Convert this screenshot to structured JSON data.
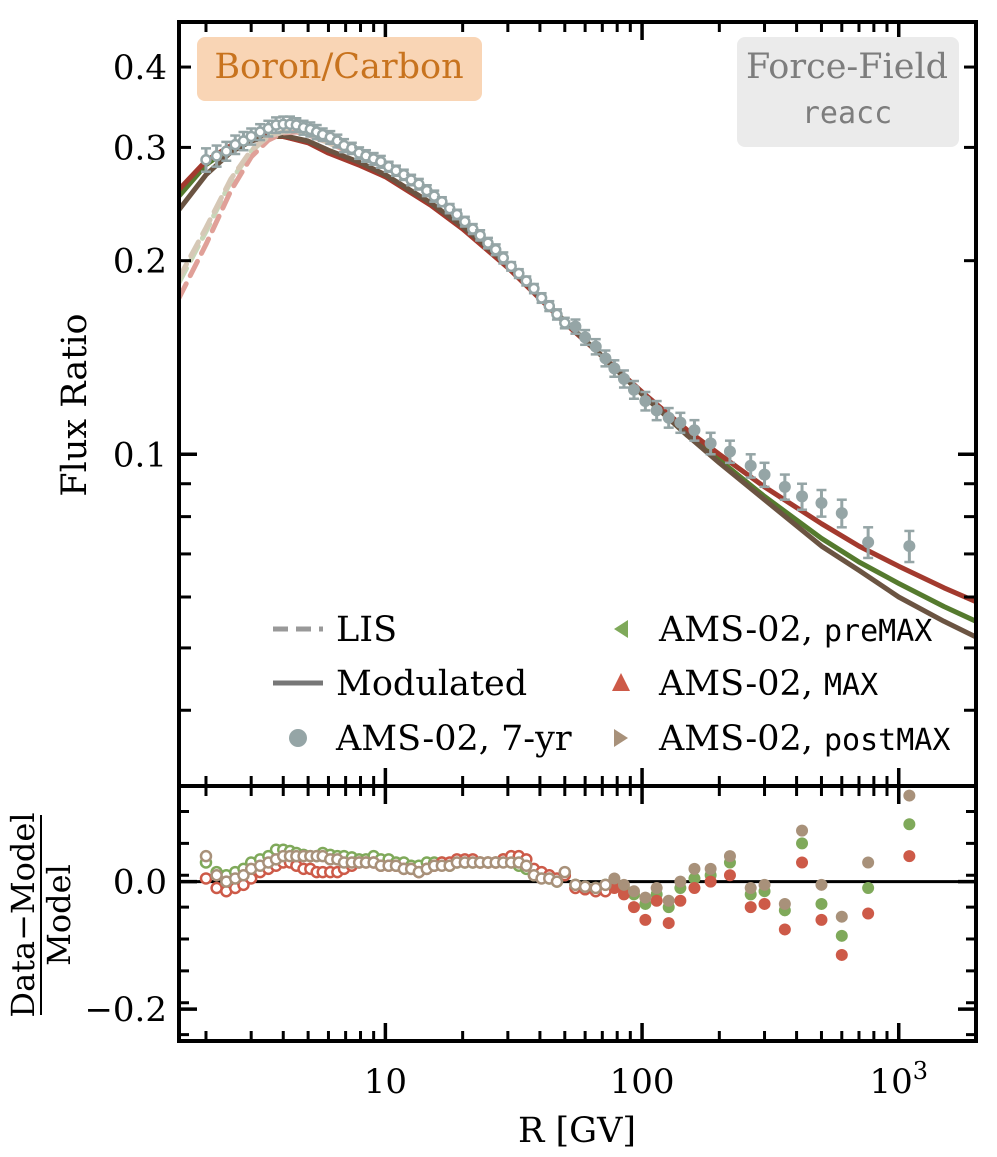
{
  "chart_data": [
    {
      "panel": "top",
      "type": "line",
      "xlabel": "",
      "ylabel": "Flux Ratio",
      "xscale": "log",
      "yscale": "log",
      "xlim": [
        1.57,
        2000
      ],
      "ylim": [
        0.0305,
        0.47
      ],
      "ytick_labels": [
        {
          "value": 0.1,
          "label": "0.1"
        },
        {
          "value": 0.2,
          "label": "0.2"
        },
        {
          "value": 0.3,
          "label": "0.3"
        },
        {
          "value": 0.4,
          "label": "0.4"
        }
      ],
      "badge_left": "Boron/Carbon",
      "badge_right": {
        "line1": "Force-Field",
        "line2": "reacc"
      },
      "legend": {
        "placement": "bottom",
        "col1": [
          {
            "key": "lis",
            "label": "LIS"
          },
          {
            "key": "modulated",
            "label": "Modulated"
          },
          {
            "key": "ams7",
            "label": "AMS-02, 7-yr"
          }
        ],
        "col2": [
          {
            "key": "pre",
            "label_main": "AMS-02, ",
            "label_code": "preMAX"
          },
          {
            "key": "max",
            "label_main": "AMS-02, ",
            "label_code": "MAX"
          },
          {
            "key": "post",
            "label_main": "AMS-02, ",
            "label_code": "postMAX"
          }
        ]
      },
      "colors": {
        "ams7": "#95a5a6",
        "pre": "#7fa95a",
        "max": "#cd5a48",
        "post": "#a8917a",
        "model_pre": "#557a2e",
        "model_max": "#a33a2e",
        "model_post": "#6b5442",
        "lis_pre": "#c8d6b8",
        "lis_max": "#e0a098",
        "lis_post": "#d6c8b6",
        "badge_left_bg": "#f9d5b5",
        "badge_left_text": "#c8731e",
        "badge_right_bg": "#ebebeb",
        "badge_right_text": "#7d7d7d"
      },
      "series": [
        {
          "kind": "modulated",
          "key": "model_pre",
          "x": [
            1.57,
            2,
            2.5,
            3,
            3.5,
            4,
            5,
            6,
            8,
            10,
            15,
            20,
            30,
            50,
            70,
            100,
            150,
            200,
            300,
            500,
            700,
            1000,
            1500,
            2000
          ],
          "y": [
            0.252,
            0.282,
            0.3,
            0.309,
            0.312,
            0.312,
            0.306,
            0.296,
            0.283,
            0.271,
            0.245,
            0.226,
            0.197,
            0.161,
            0.142,
            0.124,
            0.107,
            0.098,
            0.086,
            0.074,
            0.068,
            0.063,
            0.058,
            0.055
          ]
        },
        {
          "kind": "modulated",
          "key": "model_max",
          "x": [
            1.57,
            2,
            2.5,
            3,
            3.5,
            4,
            5,
            6,
            8,
            10,
            15,
            20,
            30,
            50,
            70,
            100,
            150,
            200,
            300,
            500,
            700,
            1000,
            1500,
            2000
          ],
          "y": [
            0.258,
            0.286,
            0.302,
            0.31,
            0.313,
            0.312,
            0.305,
            0.294,
            0.281,
            0.27,
            0.244,
            0.224,
            0.195,
            0.16,
            0.142,
            0.125,
            0.109,
            0.1,
            0.089,
            0.078,
            0.072,
            0.067,
            0.062,
            0.059
          ]
        },
        {
          "kind": "modulated",
          "key": "model_post",
          "x": [
            1.57,
            2,
            2.5,
            3,
            3.5,
            4,
            5,
            6,
            8,
            10,
            15,
            20,
            30,
            50,
            70,
            100,
            150,
            200,
            300,
            500,
            700,
            1000,
            1500,
            2000
          ],
          "y": [
            0.24,
            0.272,
            0.295,
            0.307,
            0.312,
            0.313,
            0.307,
            0.297,
            0.284,
            0.272,
            0.246,
            0.226,
            0.197,
            0.161,
            0.142,
            0.124,
            0.107,
            0.097,
            0.085,
            0.072,
            0.066,
            0.06,
            0.055,
            0.052
          ]
        },
        {
          "kind": "lis",
          "key": "lis_pre",
          "x": [
            1.57,
            2,
            2.5,
            3,
            3.5,
            4,
            4.5,
            5,
            6,
            7
          ],
          "y": [
            0.185,
            0.222,
            0.266,
            0.296,
            0.312,
            0.317,
            0.318,
            0.315,
            0.305,
            0.297
          ]
        },
        {
          "kind": "lis",
          "key": "lis_max",
          "x": [
            1.57,
            2,
            2.5,
            3,
            3.5,
            4,
            4.5,
            5,
            6,
            7
          ],
          "y": [
            0.175,
            0.212,
            0.257,
            0.29,
            0.308,
            0.316,
            0.317,
            0.314,
            0.305,
            0.297
          ]
        },
        {
          "kind": "lis",
          "key": "lis_post",
          "x": [
            1.57,
            2,
            2.5,
            3,
            3.5,
            4,
            4.5,
            5,
            6,
            7
          ],
          "y": [
            0.188,
            0.225,
            0.268,
            0.297,
            0.312,
            0.317,
            0.318,
            0.315,
            0.305,
            0.297
          ]
        }
      ],
      "points": [
        {
          "key": "ams7",
          "filled": false,
          "x": [
            2,
            2.2,
            2.4,
            2.6,
            2.8,
            3,
            3.25,
            3.5,
            3.75,
            4,
            4.25,
            4.5,
            4.8,
            5.1,
            5.4,
            5.7,
            6.1,
            6.5,
            6.9,
            7.4,
            7.9,
            8.4,
            9,
            9.6,
            10.3,
            11,
            11.8,
            12.6,
            13.5,
            14.5,
            15.5,
            16.6,
            17.8,
            19,
            20.4,
            21.9,
            23.4,
            25.1,
            26.9,
            28.8,
            30.9,
            33.1,
            35.4,
            37.9,
            40.6,
            43.5,
            46.6,
            50
          ],
          "y": [
            0.287,
            0.291,
            0.296,
            0.303,
            0.307,
            0.312,
            0.317,
            0.321,
            0.325,
            0.326,
            0.326,
            0.325,
            0.322,
            0.32,
            0.317,
            0.314,
            0.311,
            0.307,
            0.302,
            0.299,
            0.294,
            0.291,
            0.288,
            0.285,
            0.28,
            0.276,
            0.272,
            0.267,
            0.263,
            0.257,
            0.252,
            0.247,
            0.241,
            0.236,
            0.23,
            0.224,
            0.219,
            0.213,
            0.208,
            0.202,
            0.196,
            0.191,
            0.186,
            0.181,
            0.175,
            0.17,
            0.165,
            0.16
          ],
          "err": [
            0.012,
            0.011,
            0.01,
            0.01,
            0.01,
            0.009,
            0.009,
            0.009,
            0.009,
            0.009,
            0.009,
            0.008,
            0.008,
            0.008,
            0.008,
            0.007,
            0.007,
            0.007,
            0.007,
            0.006,
            0.006,
            0.006,
            0.006,
            0.006,
            0.005,
            0.005,
            0.005,
            0.005,
            0.005,
            0.005,
            0.005,
            0.004,
            0.004,
            0.004,
            0.004,
            0.004,
            0.004,
            0.004,
            0.004,
            0.004,
            0.003,
            0.003,
            0.003,
            0.003,
            0.003,
            0.003,
            0.003,
            0.003
          ]
        },
        {
          "key": "ams7",
          "filled": true,
          "x": [
            55,
            60,
            66,
            72,
            78,
            85,
            93,
            103,
            114,
            127,
            141,
            160,
            185,
            220,
            265,
            300,
            360,
            420,
            500,
            600,
            760,
            1100
          ],
          "y": [
            0.158,
            0.152,
            0.147,
            0.141,
            0.136,
            0.131,
            0.126,
            0.121,
            0.117,
            0.114,
            0.112,
            0.109,
            0.104,
            0.101,
            0.096,
            0.093,
            0.089,
            0.086,
            0.084,
            0.081,
            0.073,
            0.072
          ],
          "err": [
            0.004,
            0.004,
            0.004,
            0.004,
            0.004,
            0.004,
            0.004,
            0.004,
            0.004,
            0.004,
            0.004,
            0.004,
            0.004,
            0.004,
            0.004,
            0.004,
            0.004,
            0.004,
            0.004,
            0.004,
            0.004,
            0.004
          ]
        }
      ]
    },
    {
      "panel": "bottom",
      "type": "scatter",
      "xlabel": "R [GV]",
      "ylabel": "Data−Model / Model",
      "ylabel_numerator": "Data−Model",
      "ylabel_denominator": "Model",
      "xscale": "log",
      "xlim": [
        1.57,
        2000
      ],
      "ylim": [
        -0.25,
        0.15
      ],
      "xtick_labels": [
        {
          "value": 10,
          "label": "10"
        },
        {
          "value": 100,
          "label": "100"
        },
        {
          "value": 1000,
          "label": "10",
          "sup": "3"
        }
      ],
      "ytick_labels": [
        {
          "value": 0,
          "label": "0.0"
        },
        {
          "value": -0.2,
          "label": "−0.2"
        }
      ],
      "zero_line": true,
      "open_x": [
        2,
        2.2,
        2.4,
        2.6,
        2.8,
        3,
        3.25,
        3.5,
        3.75,
        4,
        4.25,
        4.5,
        4.8,
        5.1,
        5.4,
        5.7,
        6.1,
        6.5,
        6.9,
        7.4,
        7.9,
        8.4,
        9,
        9.6,
        10.3,
        11,
        11.8,
        12.6,
        13.5,
        14.5,
        15.5,
        16.6,
        17.8,
        19,
        20.4,
        21.9,
        23.4,
        25.1,
        26.9,
        28.8,
        30.9,
        33.1,
        35.4,
        37.9,
        40.6,
        43.5,
        46.6,
        50,
        55,
        60,
        66,
        72
      ],
      "series": [
        {
          "key": "pre",
          "name": "AMS-02, preMAX",
          "open_y": [
            0.03,
            0.015,
            0.01,
            0.015,
            0.02,
            0.03,
            0.035,
            0.04,
            0.05,
            0.05,
            0.048,
            0.045,
            0.042,
            0.04,
            0.04,
            0.045,
            0.042,
            0.04,
            0.04,
            0.038,
            0.035,
            0.035,
            0.04,
            0.035,
            0.035,
            0.03,
            0.03,
            0.025,
            0.025,
            0.03,
            0.03,
            0.03,
            0.025,
            0.03,
            0.03,
            0.03,
            0.03,
            0.03,
            0.03,
            0.035,
            0.03,
            0.025,
            0.02,
            0.01,
            0.01,
            0.005,
            0.0,
            0.01,
            -0.005,
            -0.008,
            -0.01,
            -0.005
          ],
          "filled_x": [
            78,
            85,
            93,
            103,
            114,
            127,
            141,
            160,
            185,
            220,
            265,
            300,
            360,
            420,
            500,
            600,
            760,
            1100
          ],
          "filled_y": [
            0.0,
            -0.01,
            -0.02,
            -0.035,
            -0.02,
            -0.04,
            -0.01,
            0.005,
            0.01,
            0.03,
            -0.02,
            -0.015,
            -0.045,
            0.06,
            -0.035,
            -0.085,
            -0.01,
            0.09
          ]
        },
        {
          "key": "max",
          "name": "AMS-02, MAX",
          "open_y": [
            0.005,
            -0.01,
            -0.015,
            -0.01,
            -0.005,
            0.005,
            0.015,
            0.02,
            0.025,
            0.03,
            0.03,
            0.025,
            0.02,
            0.02,
            0.015,
            0.015,
            0.015,
            0.015,
            0.02,
            0.025,
            0.03,
            0.03,
            0.03,
            0.025,
            0.025,
            0.025,
            0.02,
            0.02,
            0.015,
            0.02,
            0.025,
            0.03,
            0.03,
            0.035,
            0.035,
            0.035,
            0.03,
            0.03,
            0.03,
            0.035,
            0.04,
            0.04,
            0.035,
            0.02,
            0.015,
            0.01,
            0.005,
            0.01,
            -0.01,
            -0.012,
            -0.015,
            -0.015
          ],
          "filled_x": [
            78,
            85,
            93,
            103,
            114,
            127,
            141,
            160,
            185,
            220,
            265,
            300,
            360,
            420,
            500,
            600,
            760,
            1100
          ],
          "filled_y": [
            -0.01,
            -0.02,
            -0.04,
            -0.06,
            -0.03,
            -0.065,
            -0.03,
            -0.01,
            0.0,
            0.01,
            -0.04,
            -0.035,
            -0.075,
            0.03,
            -0.06,
            -0.115,
            -0.05,
            0.04
          ]
        },
        {
          "key": "post",
          "name": "AMS-02, postMAX",
          "open_y": [
            0.04,
            0.01,
            0.0,
            0.005,
            0.01,
            0.02,
            0.025,
            0.03,
            0.035,
            0.04,
            0.04,
            0.04,
            0.04,
            0.04,
            0.04,
            0.04,
            0.035,
            0.035,
            0.03,
            0.03,
            0.03,
            0.03,
            0.03,
            0.025,
            0.025,
            0.025,
            0.02,
            0.02,
            0.015,
            0.02,
            0.025,
            0.025,
            0.025,
            0.03,
            0.03,
            0.03,
            0.03,
            0.03,
            0.03,
            0.03,
            0.03,
            0.03,
            0.025,
            0.01,
            0.005,
            0.005,
            0.0,
            0.015,
            -0.005,
            -0.008,
            -0.01,
            -0.005
          ],
          "filled_x": [
            78,
            85,
            93,
            103,
            114,
            127,
            141,
            160,
            185,
            220,
            265,
            300,
            360,
            420,
            500,
            600,
            760,
            1100
          ],
          "filled_y": [
            0.005,
            -0.005,
            -0.015,
            -0.025,
            -0.01,
            -0.03,
            0.0,
            0.02,
            0.02,
            0.04,
            -0.01,
            -0.005,
            -0.035,
            0.08,
            -0.005,
            -0.055,
            0.03,
            0.135
          ]
        }
      ]
    }
  ]
}
